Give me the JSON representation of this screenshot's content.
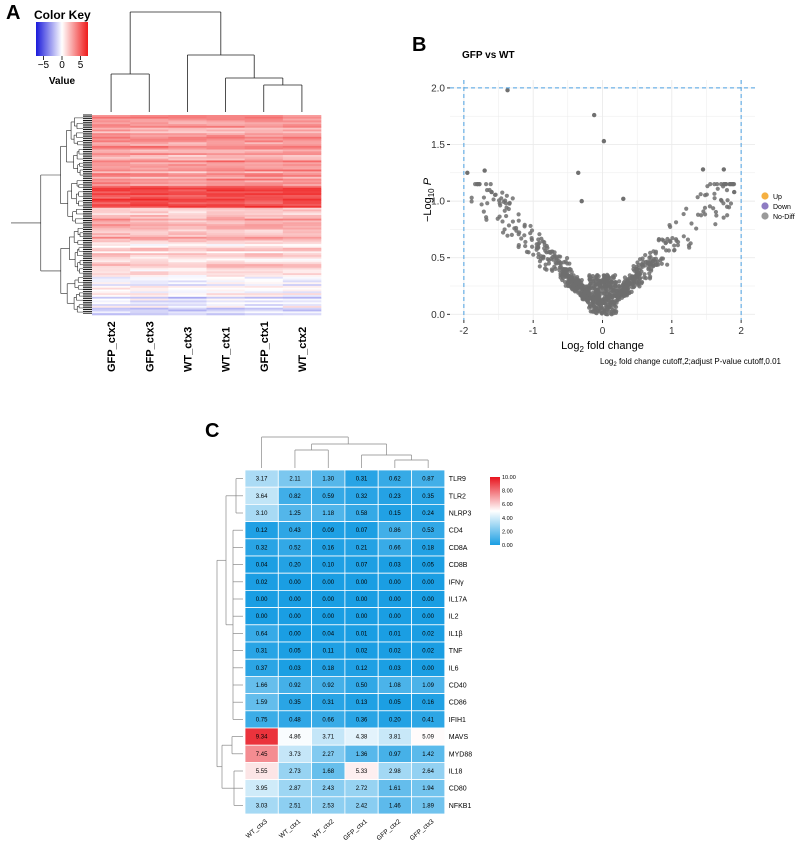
{
  "panels": {
    "a": "A",
    "b": "B",
    "c": "C"
  },
  "chart_data": [
    {
      "id": "A",
      "type": "heatmap",
      "title": "Color Key",
      "color_key": {
        "label": "Value",
        "ticks": [
          "−5",
          "0",
          "5"
        ],
        "tick_values": [
          -5,
          0,
          5
        ],
        "range": [
          -7,
          7
        ],
        "colors": [
          "#1a1adb",
          "#ffffff",
          "#ef1b1b"
        ]
      },
      "columns": [
        "GFP_ctx2",
        "GFP_ctx3",
        "WT_ctx3",
        "WT_ctx1",
        "GFP_ctx1",
        "WT_ctx2"
      ],
      "rows": "approximately 1000 genes (not individually labeled)",
      "dendrograms": [
        "rows",
        "columns"
      ]
    },
    {
      "id": "B",
      "type": "scatter",
      "title": "GFP vs WT",
      "xlabel": "Log2 fold change",
      "xlabel_base": "Log",
      "xlabel_sub": "2",
      "xlabel_rest": " fold change",
      "ylabel_prefix": "−Log",
      "ylabel_sub": "10",
      "ylabel_p": "P",
      "xlim": [
        -2.2,
        2.2
      ],
      "ylim": [
        -0.05,
        2.07
      ],
      "x_ticks": [
        -2,
        -1,
        0,
        1,
        2
      ],
      "x_tick_labels": [
        "-2",
        "-1",
        "0",
        "1",
        "2"
      ],
      "y_ticks": [
        0.0,
        0.5,
        1.0,
        1.5,
        2.0
      ],
      "y_tick_labels": [
        "0.0",
        "0.5",
        "1.0",
        "1.5",
        "2.0"
      ],
      "cutoff_lines": {
        "x": [
          -2,
          2
        ],
        "y": 2.0
      },
      "legend": [
        {
          "label": "Up",
          "color": "#f5b041"
        },
        {
          "label": "Down",
          "color": "#8e7cc3"
        },
        {
          "label": "No-Diff",
          "color": "#9a9a9a"
        }
      ],
      "caption_base": "Log",
      "caption_sub": "2",
      "caption_rest": " fold change cutoff,2;adjust P-value cutoff,0.01",
      "highlighted_points": [
        {
          "x": -1.37,
          "y": 1.98
        },
        {
          "x": -0.12,
          "y": 1.76
        },
        {
          "x": 0.02,
          "y": 1.53
        },
        {
          "x": -1.95,
          "y": 1.25
        },
        {
          "x": -1.7,
          "y": 1.27
        },
        {
          "x": 1.45,
          "y": 1.28
        },
        {
          "x": 1.75,
          "y": 1.28
        },
        {
          "x": 1.9,
          "y": 1.08
        },
        {
          "x": -0.35,
          "y": 1.25
        },
        {
          "x": -0.3,
          "y": 1.0
        },
        {
          "x": 0.3,
          "y": 1.02
        },
        {
          "x": -1.6,
          "y": 1.08
        }
      ],
      "point_count_approx": 900
    },
    {
      "id": "C",
      "type": "heatmap",
      "columns": [
        "WT_ctx3",
        "WT_ctx1",
        "WT_ctx2",
        "GFP_ctx1",
        "GFP_ctx2",
        "GFP_ctx3"
      ],
      "rows": [
        "TLR9",
        "TLR2",
        "NLRP3",
        "CD4",
        "CD8A",
        "CD8B",
        "IFNγ",
        "IL17A",
        "IL2",
        "IL1β",
        "TNF",
        "IL6",
        "CD40",
        "CD86",
        "IFIH1",
        "MAVS",
        "MYD88",
        "IL18",
        "CD80",
        "NFKB1"
      ],
      "values": [
        [
          "3.17",
          "2.11",
          "1.30",
          "0.31",
          "0.62",
          "0.87"
        ],
        [
          "3.64",
          "0.82",
          "0.59",
          "0.32",
          "0.23",
          "0.35"
        ],
        [
          "3.10",
          "1.25",
          "1.18",
          "0.58",
          "0.15",
          "0.24"
        ],
        [
          "0.12",
          "0.43",
          "0.09",
          "0.07",
          "0.86",
          "0.53"
        ],
        [
          "0.32",
          "0.52",
          "0.16",
          "0.21",
          "0.66",
          "0.18"
        ],
        [
          "0.04",
          "0.20",
          "0.10",
          "0.07",
          "0.03",
          "0.05"
        ],
        [
          "0.02",
          "0.00",
          "0.00",
          "0.00",
          "0.00",
          "0.00"
        ],
        [
          "0.00",
          "0.00",
          "0.00",
          "0.00",
          "0.00",
          "0.00"
        ],
        [
          "0.00",
          "0.00",
          "0.00",
          "0.00",
          "0.00",
          "0.00"
        ],
        [
          "0.64",
          "0.00",
          "0.04",
          "0.01",
          "0.01",
          "0.02"
        ],
        [
          "0.31",
          "0.05",
          "0.11",
          "0.02",
          "0.02",
          "0.02"
        ],
        [
          "0.37",
          "0.03",
          "0.18",
          "0.12",
          "0.03",
          "0.00"
        ],
        [
          "1.66",
          "0.92",
          "0.92",
          "0.50",
          "1.08",
          "1.09"
        ],
        [
          "1.59",
          "0.35",
          "0.31",
          "0.13",
          "0.05",
          "0.16"
        ],
        [
          "0.75",
          "0.48",
          "0.66",
          "0.36",
          "0.20",
          "0.41"
        ],
        [
          "9.34",
          "4.86",
          "3.71",
          "4.38",
          "3.81",
          "5.09"
        ],
        [
          "7.45",
          "3.73",
          "2.27",
          "1.36",
          "0.97",
          "1.42"
        ],
        [
          "5.55",
          "2.73",
          "1.68",
          "5.33",
          "2.98",
          "2.64"
        ],
        [
          "3.95",
          "2.87",
          "2.43",
          "2.72",
          "1.61",
          "1.94"
        ],
        [
          "3.03",
          "2.51",
          "2.53",
          "2.42",
          "1.46",
          "1.89"
        ]
      ],
      "scale": {
        "ticks": [
          "10.00",
          "8.00",
          "6.00",
          "4.00",
          "2.00",
          "0.00"
        ],
        "tick_values": [
          10,
          8,
          6,
          4,
          2,
          0
        ],
        "min": 0,
        "max": 10,
        "colors": [
          "#1a9ee3",
          "#ffffff",
          "#e8141e"
        ]
      }
    }
  ]
}
